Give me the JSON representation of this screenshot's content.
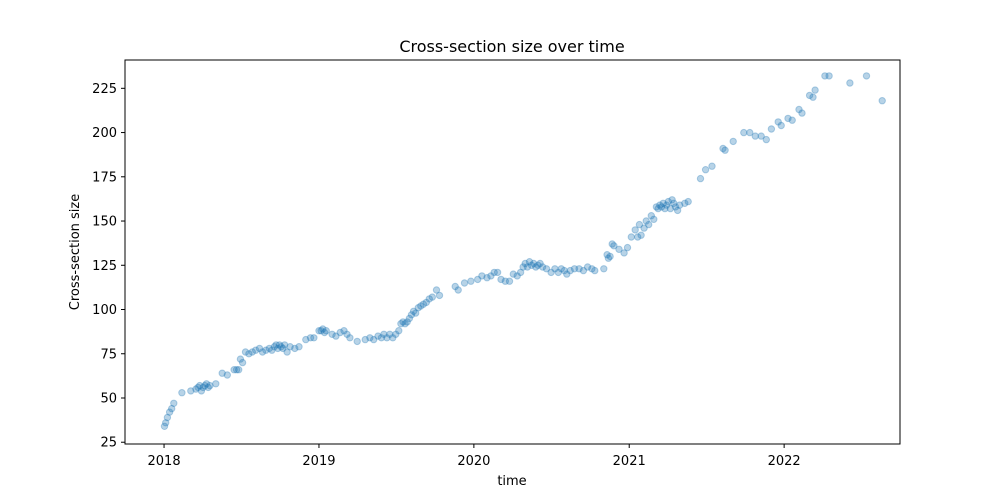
{
  "chart_data": {
    "type": "scatter",
    "title": "Cross-section size over time",
    "xlabel": "time",
    "ylabel": "Cross-section size",
    "x_axis_type": "date",
    "xlim": [
      "2017-10-01",
      "2022-10-01"
    ],
    "ylim": [
      24,
      241
    ],
    "xticks": [
      "2018",
      "2019",
      "2020",
      "2021",
      "2022"
    ],
    "xtick_dates": [
      "2018-01-01",
      "2019-01-01",
      "2020-01-01",
      "2021-01-01",
      "2022-01-01"
    ],
    "yticks": [
      25,
      50,
      75,
      100,
      125,
      150,
      175,
      200,
      225
    ],
    "grid": false,
    "marker_color": "#1f77b4",
    "marker_alpha": 0.32,
    "series": [
      {
        "points": [
          [
            "2018-01-02",
            34
          ],
          [
            "2018-01-05",
            36
          ],
          [
            "2018-01-09",
            39
          ],
          [
            "2018-01-14",
            42
          ],
          [
            "2018-01-19",
            44
          ],
          [
            "2018-01-24",
            47
          ],
          [
            "2018-02-12",
            53
          ],
          [
            "2018-03-05",
            54
          ],
          [
            "2018-03-17",
            55
          ],
          [
            "2018-03-22",
            56
          ],
          [
            "2018-03-26",
            57
          ],
          [
            "2018-03-30",
            54
          ],
          [
            "2018-04-03",
            56
          ],
          [
            "2018-04-07",
            57
          ],
          [
            "2018-04-11",
            58
          ],
          [
            "2018-04-15",
            56
          ],
          [
            "2018-04-19",
            57
          ],
          [
            "2018-05-03",
            58
          ],
          [
            "2018-05-18",
            64
          ],
          [
            "2018-05-30",
            63
          ],
          [
            "2018-06-15",
            66
          ],
          [
            "2018-06-21",
            66
          ],
          [
            "2018-06-26",
            66
          ],
          [
            "2018-06-30",
            72
          ],
          [
            "2018-07-05",
            70
          ],
          [
            "2018-07-12",
            76
          ],
          [
            "2018-07-20",
            75
          ],
          [
            "2018-07-28",
            76
          ],
          [
            "2018-08-05",
            77
          ],
          [
            "2018-08-14",
            78
          ],
          [
            "2018-08-21",
            76
          ],
          [
            "2018-08-29",
            77
          ],
          [
            "2018-09-06",
            78
          ],
          [
            "2018-09-12",
            77
          ],
          [
            "2018-09-18",
            79
          ],
          [
            "2018-09-22",
            80
          ],
          [
            "2018-09-26",
            78
          ],
          [
            "2018-09-30",
            80
          ],
          [
            "2018-10-04",
            79
          ],
          [
            "2018-10-08",
            78
          ],
          [
            "2018-10-12",
            80
          ],
          [
            "2018-10-18",
            76
          ],
          [
            "2018-10-25",
            79
          ],
          [
            "2018-11-05",
            78
          ],
          [
            "2018-11-15",
            79
          ],
          [
            "2018-12-01",
            83
          ],
          [
            "2018-12-12",
            84
          ],
          [
            "2018-12-20",
            84
          ],
          [
            "2019-01-01",
            88
          ],
          [
            "2019-01-06",
            88
          ],
          [
            "2019-01-10",
            89
          ],
          [
            "2019-01-14",
            87
          ],
          [
            "2019-01-18",
            88
          ],
          [
            "2019-02-01",
            86
          ],
          [
            "2019-02-10",
            85
          ],
          [
            "2019-02-20",
            87
          ],
          [
            "2019-03-01",
            88
          ],
          [
            "2019-03-08",
            86
          ],
          [
            "2019-03-15",
            84
          ],
          [
            "2019-04-01",
            82
          ],
          [
            "2019-04-20",
            83
          ],
          [
            "2019-05-01",
            84
          ],
          [
            "2019-05-10",
            83
          ],
          [
            "2019-05-20",
            85
          ],
          [
            "2019-05-28",
            84
          ],
          [
            "2019-06-03",
            86
          ],
          [
            "2019-06-10",
            84
          ],
          [
            "2019-06-17",
            86
          ],
          [
            "2019-06-24",
            84
          ],
          [
            "2019-07-01",
            86
          ],
          [
            "2019-07-08",
            88
          ],
          [
            "2019-07-13",
            92
          ],
          [
            "2019-07-18",
            93
          ],
          [
            "2019-07-23",
            92
          ],
          [
            "2019-07-28",
            93
          ],
          [
            "2019-08-02",
            95
          ],
          [
            "2019-08-07",
            97
          ],
          [
            "2019-08-12",
            99
          ],
          [
            "2019-08-17",
            98
          ],
          [
            "2019-08-23",
            101
          ],
          [
            "2019-08-29",
            102
          ],
          [
            "2019-09-04",
            103
          ],
          [
            "2019-09-11",
            104
          ],
          [
            "2019-09-18",
            106
          ],
          [
            "2019-09-25",
            107
          ],
          [
            "2019-10-05",
            111
          ],
          [
            "2019-10-12",
            108
          ],
          [
            "2019-11-18",
            113
          ],
          [
            "2019-11-25",
            111
          ],
          [
            "2019-12-10",
            115
          ],
          [
            "2019-12-25",
            116
          ],
          [
            "2020-01-10",
            117
          ],
          [
            "2020-01-20",
            119
          ],
          [
            "2020-02-01",
            118
          ],
          [
            "2020-02-10",
            119
          ],
          [
            "2020-02-18",
            121
          ],
          [
            "2020-02-26",
            121
          ],
          [
            "2020-03-05",
            117
          ],
          [
            "2020-03-15",
            116
          ],
          [
            "2020-03-25",
            116
          ],
          [
            "2020-04-03",
            120
          ],
          [
            "2020-04-12",
            119
          ],
          [
            "2020-04-20",
            121
          ],
          [
            "2020-04-26",
            124
          ],
          [
            "2020-05-01",
            126
          ],
          [
            "2020-05-06",
            124
          ],
          [
            "2020-05-11",
            127
          ],
          [
            "2020-05-16",
            125
          ],
          [
            "2020-05-21",
            126
          ],
          [
            "2020-05-26",
            124
          ],
          [
            "2020-05-31",
            125
          ],
          [
            "2020-06-05",
            126
          ],
          [
            "2020-06-11",
            124
          ],
          [
            "2020-06-20",
            123
          ],
          [
            "2020-07-01",
            121
          ],
          [
            "2020-07-10",
            123
          ],
          [
            "2020-07-18",
            121
          ],
          [
            "2020-07-25",
            123
          ],
          [
            "2020-08-01",
            122
          ],
          [
            "2020-08-07",
            120
          ],
          [
            "2020-08-15",
            122
          ],
          [
            "2020-08-25",
            123
          ],
          [
            "2020-09-05",
            123
          ],
          [
            "2020-09-15",
            122
          ],
          [
            "2020-09-25",
            124
          ],
          [
            "2020-10-05",
            123
          ],
          [
            "2020-10-12",
            122
          ],
          [
            "2020-11-02",
            123
          ],
          [
            "2020-11-10",
            131
          ],
          [
            "2020-11-13",
            129
          ],
          [
            "2020-11-17",
            130
          ],
          [
            "2020-11-22",
            137
          ],
          [
            "2020-11-26",
            136
          ],
          [
            "2020-12-08",
            134
          ],
          [
            "2020-12-20",
            132
          ],
          [
            "2020-12-28",
            135
          ],
          [
            "2021-01-06",
            141
          ],
          [
            "2021-01-15",
            145
          ],
          [
            "2021-01-21",
            141
          ],
          [
            "2021-01-25",
            148
          ],
          [
            "2021-01-29",
            142
          ],
          [
            "2021-02-05",
            146
          ],
          [
            "2021-02-10",
            150
          ],
          [
            "2021-02-16",
            148
          ],
          [
            "2021-02-22",
            153
          ],
          [
            "2021-02-28",
            151
          ],
          [
            "2021-03-06",
            158
          ],
          [
            "2021-03-10",
            157
          ],
          [
            "2021-03-14",
            159
          ],
          [
            "2021-03-18",
            158
          ],
          [
            "2021-03-22",
            160
          ],
          [
            "2021-03-26",
            157
          ],
          [
            "2021-03-30",
            159
          ],
          [
            "2021-04-03",
            161
          ],
          [
            "2021-04-08",
            157
          ],
          [
            "2021-04-12",
            162
          ],
          [
            "2021-04-16",
            160
          ],
          [
            "2021-04-20",
            158
          ],
          [
            "2021-04-25",
            156
          ],
          [
            "2021-04-30",
            159
          ],
          [
            "2021-05-12",
            160
          ],
          [
            "2021-05-20",
            161
          ],
          [
            "2021-06-18",
            174
          ],
          [
            "2021-06-30",
            179
          ],
          [
            "2021-07-15",
            181
          ],
          [
            "2021-08-10",
            191
          ],
          [
            "2021-08-15",
            190
          ],
          [
            "2021-09-03",
            195
          ],
          [
            "2021-09-28",
            200
          ],
          [
            "2021-10-12",
            200
          ],
          [
            "2021-10-25",
            198
          ],
          [
            "2021-11-08",
            198
          ],
          [
            "2021-11-20",
            196
          ],
          [
            "2021-12-02",
            202
          ],
          [
            "2021-12-18",
            206
          ],
          [
            "2021-12-25",
            204
          ],
          [
            "2022-01-10",
            208
          ],
          [
            "2022-01-20",
            207
          ],
          [
            "2022-02-05",
            213
          ],
          [
            "2022-02-12",
            211
          ],
          [
            "2022-03-02",
            221
          ],
          [
            "2022-03-10",
            220
          ],
          [
            "2022-03-15",
            224
          ],
          [
            "2022-04-07",
            232
          ],
          [
            "2022-04-17",
            232
          ],
          [
            "2022-06-05",
            228
          ],
          [
            "2022-07-14",
            232
          ],
          [
            "2022-08-20",
            218
          ]
        ]
      }
    ]
  }
}
